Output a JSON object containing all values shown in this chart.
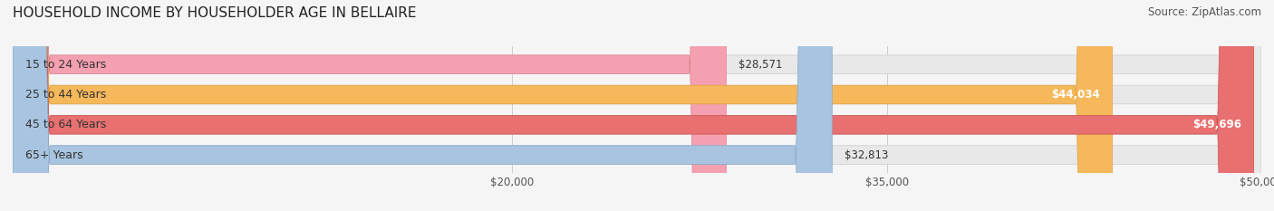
{
  "title": "HOUSEHOLD INCOME BY HOUSEHOLDER AGE IN BELLAIRE",
  "source": "Source: ZipAtlas.com",
  "categories": [
    "15 to 24 Years",
    "25 to 44 Years",
    "45 to 64 Years",
    "65+ Years"
  ],
  "values": [
    28571,
    44034,
    49696,
    32813
  ],
  "bar_colors": [
    "#f4a0b0",
    "#f5b85a",
    "#e87070",
    "#a8c4e0"
  ],
  "bar_edge_colors": [
    "#e08090",
    "#e0a040",
    "#c85050",
    "#88a8c8"
  ],
  "value_labels": [
    "$28,571",
    "$44,034",
    "$49,696",
    "$32,813"
  ],
  "xmin": 0,
  "xmax": 50000,
  "xticks": [
    20000,
    35000,
    50000
  ],
  "xtick_labels": [
    "$20,000",
    "$35,000",
    "$50,000"
  ],
  "background_color": "#f5f5f5",
  "bar_background_color": "#e8e8e8",
  "title_fontsize": 11,
  "source_fontsize": 8.5,
  "label_fontsize": 9,
  "value_fontsize": 8.5
}
